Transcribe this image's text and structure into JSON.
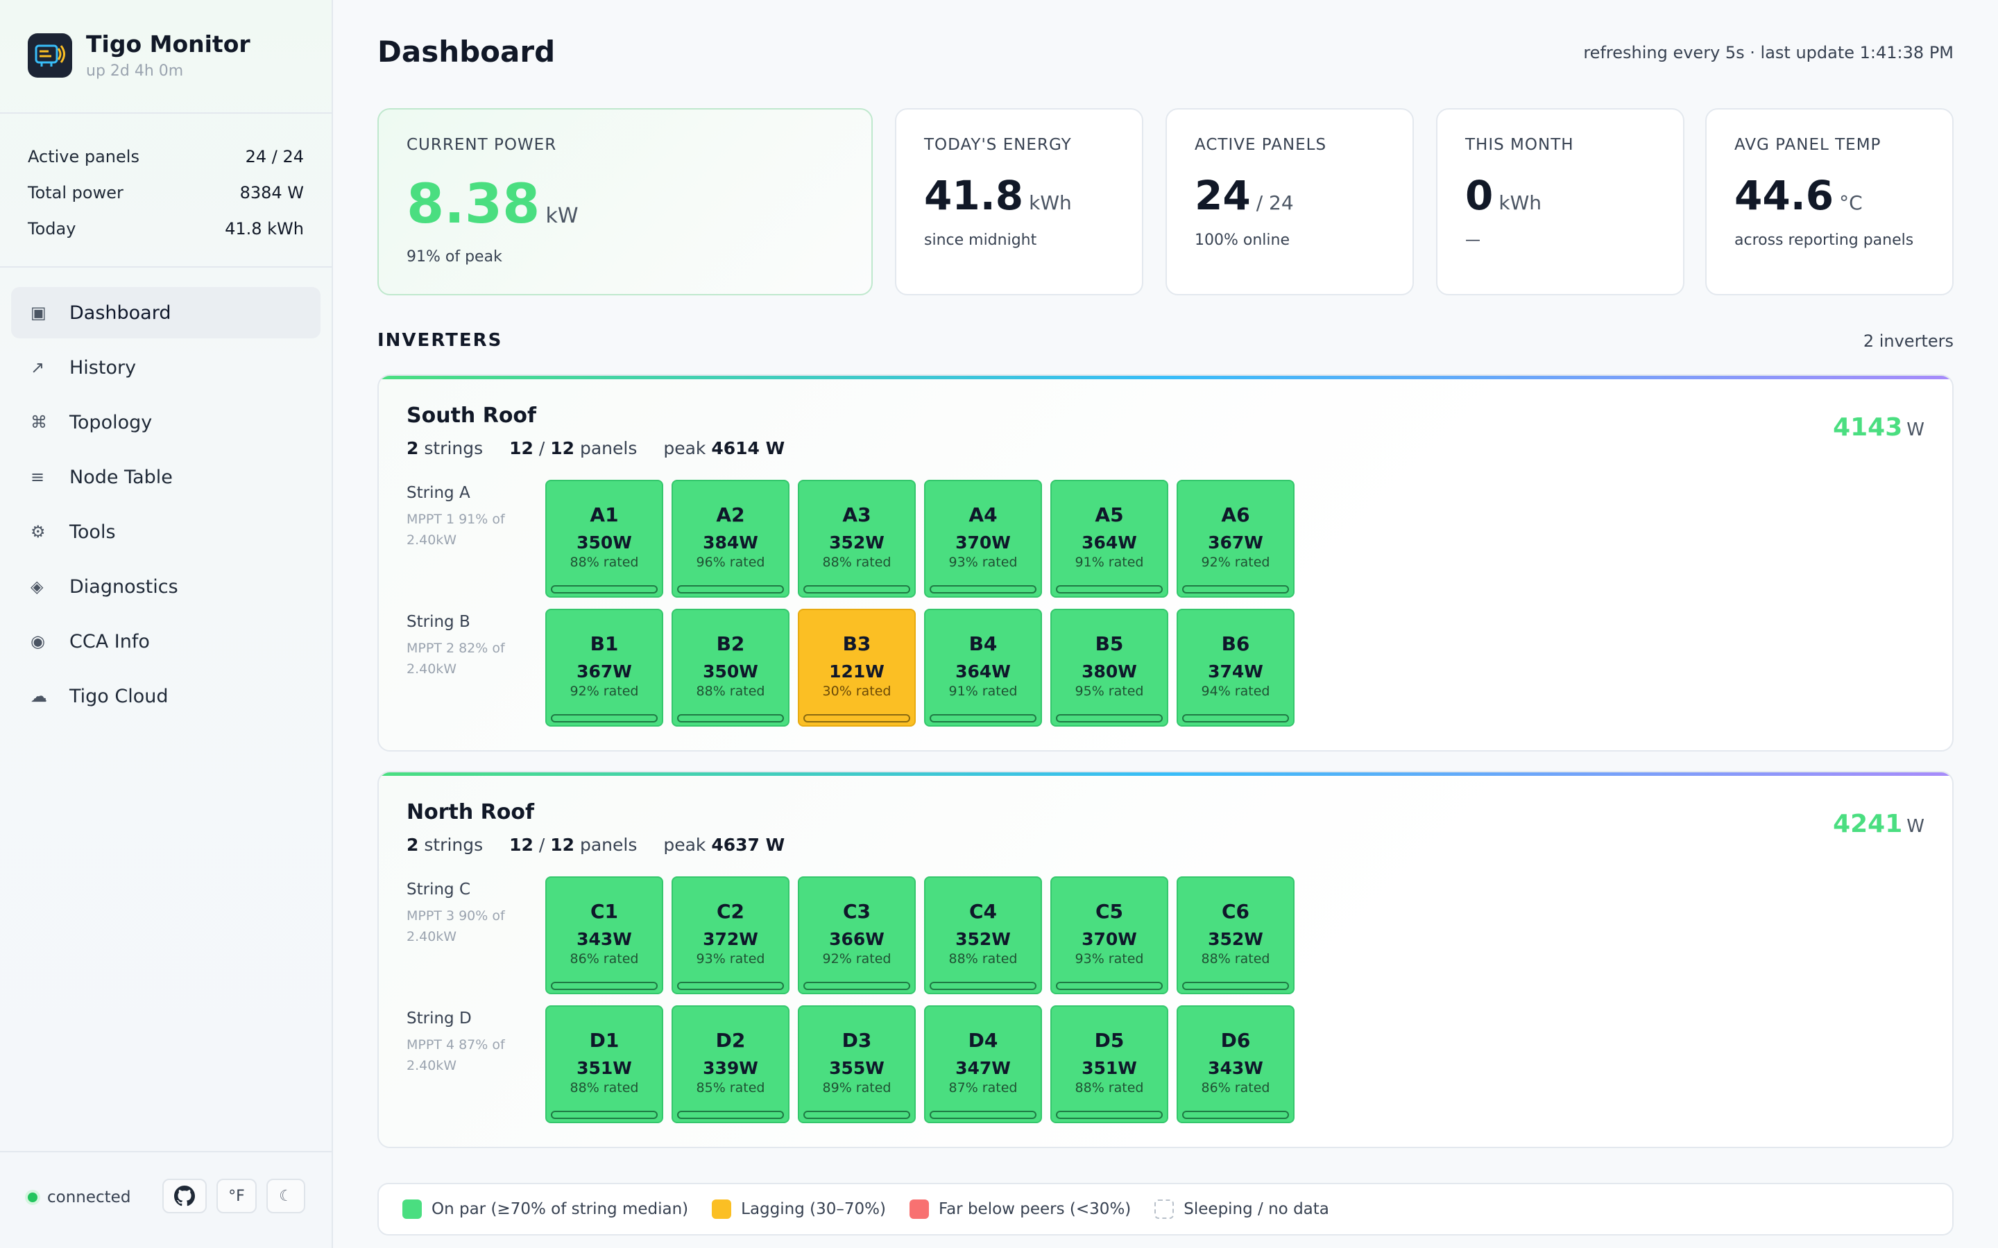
{
  "brand": {
    "title": "Tigo Monitor",
    "uptime": "up 2d 4h 0m"
  },
  "sidebar_stats": [
    {
      "label": "Active panels",
      "value": "24 / 24"
    },
    {
      "label": "Total power",
      "value": "8384 W"
    },
    {
      "label": "Today",
      "value": "41.8 kWh"
    }
  ],
  "nav": [
    {
      "icon": "▣",
      "label": "Dashboard",
      "active": true
    },
    {
      "icon": "↗",
      "label": "History"
    },
    {
      "icon": "⌘",
      "label": "Topology"
    },
    {
      "icon": "≡",
      "label": "Node Table"
    },
    {
      "icon": "⚙",
      "label": "Tools"
    },
    {
      "icon": "◈",
      "label": "Diagnostics"
    },
    {
      "icon": "◉",
      "label": "CCA Info"
    },
    {
      "icon": "☁",
      "label": "Tigo Cloud"
    }
  ],
  "footer": {
    "status": "connected",
    "temp_unit": "°F",
    "theme_icon": "☾"
  },
  "header": {
    "title": "Dashboard",
    "refresh": "refreshing every 5s · last update 1:41:38 PM"
  },
  "cards": {
    "current_power": {
      "label": "CURRENT POWER",
      "value": "8.38",
      "unit": "kW",
      "sub": "91% of peak"
    },
    "today_energy": {
      "label": "TODAY'S ENERGY",
      "value": "41.8",
      "unit": "kWh",
      "sub": "since midnight"
    },
    "active_panels": {
      "label": "ACTIVE PANELS",
      "value": "24",
      "unit": "/ 24",
      "sub": "100% online"
    },
    "this_month": {
      "label": "THIS MONTH",
      "value": "0",
      "unit": "kWh",
      "sub": "—"
    },
    "avg_temp": {
      "label": "AVG PANEL TEMP",
      "value": "44.6",
      "unit": "°C",
      "sub": "across reporting panels"
    }
  },
  "inverters_section": {
    "title": "INVERTERS",
    "count": "2 inverters"
  },
  "inverters": [
    {
      "name": "South Roof",
      "strings": "2",
      "strings_label": "strings",
      "panels_active": "12",
      "panels_total": "12",
      "panels_label": "panels",
      "peak_label": "peak",
      "peak": "4614 W",
      "power": "4143",
      "power_unit": "W",
      "string_rows": [
        {
          "name": "String A",
          "mppt": "MPPT 1 91% of 2.40kW",
          "panels": [
            {
              "id": "A1",
              "power": "350W",
              "rated": "88% rated",
              "state": "ok"
            },
            {
              "id": "A2",
              "power": "384W",
              "rated": "96% rated",
              "state": "ok"
            },
            {
              "id": "A3",
              "power": "352W",
              "rated": "88% rated",
              "state": "ok"
            },
            {
              "id": "A4",
              "power": "370W",
              "rated": "93% rated",
              "state": "ok"
            },
            {
              "id": "A5",
              "power": "364W",
              "rated": "91% rated",
              "state": "ok"
            },
            {
              "id": "A6",
              "power": "367W",
              "rated": "92% rated",
              "state": "ok"
            }
          ]
        },
        {
          "name": "String B",
          "mppt": "MPPT 2 82% of 2.40kW",
          "panels": [
            {
              "id": "B1",
              "power": "367W",
              "rated": "92% rated",
              "state": "ok"
            },
            {
              "id": "B2",
              "power": "350W",
              "rated": "88% rated",
              "state": "ok"
            },
            {
              "id": "B3",
              "power": "121W",
              "rated": "30% rated",
              "state": "lag"
            },
            {
              "id": "B4",
              "power": "364W",
              "rated": "91% rated",
              "state": "ok"
            },
            {
              "id": "B5",
              "power": "380W",
              "rated": "95% rated",
              "state": "ok"
            },
            {
              "id": "B6",
              "power": "374W",
              "rated": "94% rated",
              "state": "ok"
            }
          ]
        }
      ]
    },
    {
      "name": "North Roof",
      "strings": "2",
      "strings_label": "strings",
      "panels_active": "12",
      "panels_total": "12",
      "panels_label": "panels",
      "peak_label": "peak",
      "peak": "4637 W",
      "power": "4241",
      "power_unit": "W",
      "string_rows": [
        {
          "name": "String C",
          "mppt": "MPPT 3 90% of 2.40kW",
          "panels": [
            {
              "id": "C1",
              "power": "343W",
              "rated": "86% rated",
              "state": "ok"
            },
            {
              "id": "C2",
              "power": "372W",
              "rated": "93% rated",
              "state": "ok"
            },
            {
              "id": "C3",
              "power": "366W",
              "rated": "92% rated",
              "state": "ok"
            },
            {
              "id": "C4",
              "power": "352W",
              "rated": "88% rated",
              "state": "ok"
            },
            {
              "id": "C5",
              "power": "370W",
              "rated": "93% rated",
              "state": "ok"
            },
            {
              "id": "C6",
              "power": "352W",
              "rated": "88% rated",
              "state": "ok"
            }
          ]
        },
        {
          "name": "String D",
          "mppt": "MPPT 4 87% of 2.40kW",
          "panels": [
            {
              "id": "D1",
              "power": "351W",
              "rated": "88% rated",
              "state": "ok"
            },
            {
              "id": "D2",
              "power": "339W",
              "rated": "85% rated",
              "state": "ok"
            },
            {
              "id": "D3",
              "power": "355W",
              "rated": "89% rated",
              "state": "ok"
            },
            {
              "id": "D4",
              "power": "347W",
              "rated": "87% rated",
              "state": "ok"
            },
            {
              "id": "D5",
              "power": "351W",
              "rated": "88% rated",
              "state": "ok"
            },
            {
              "id": "D6",
              "power": "343W",
              "rated": "86% rated",
              "state": "ok"
            }
          ]
        }
      ]
    }
  ],
  "legend": [
    {
      "label": "On par (≥70% of string median)",
      "color": "#4ade80"
    },
    {
      "label": "Lagging (30–70%)",
      "color": "#fbbf24"
    },
    {
      "label": "Far below peers (<30%)",
      "color": "#f87171"
    },
    {
      "label": "Sleeping / no data",
      "color": "none"
    }
  ]
}
